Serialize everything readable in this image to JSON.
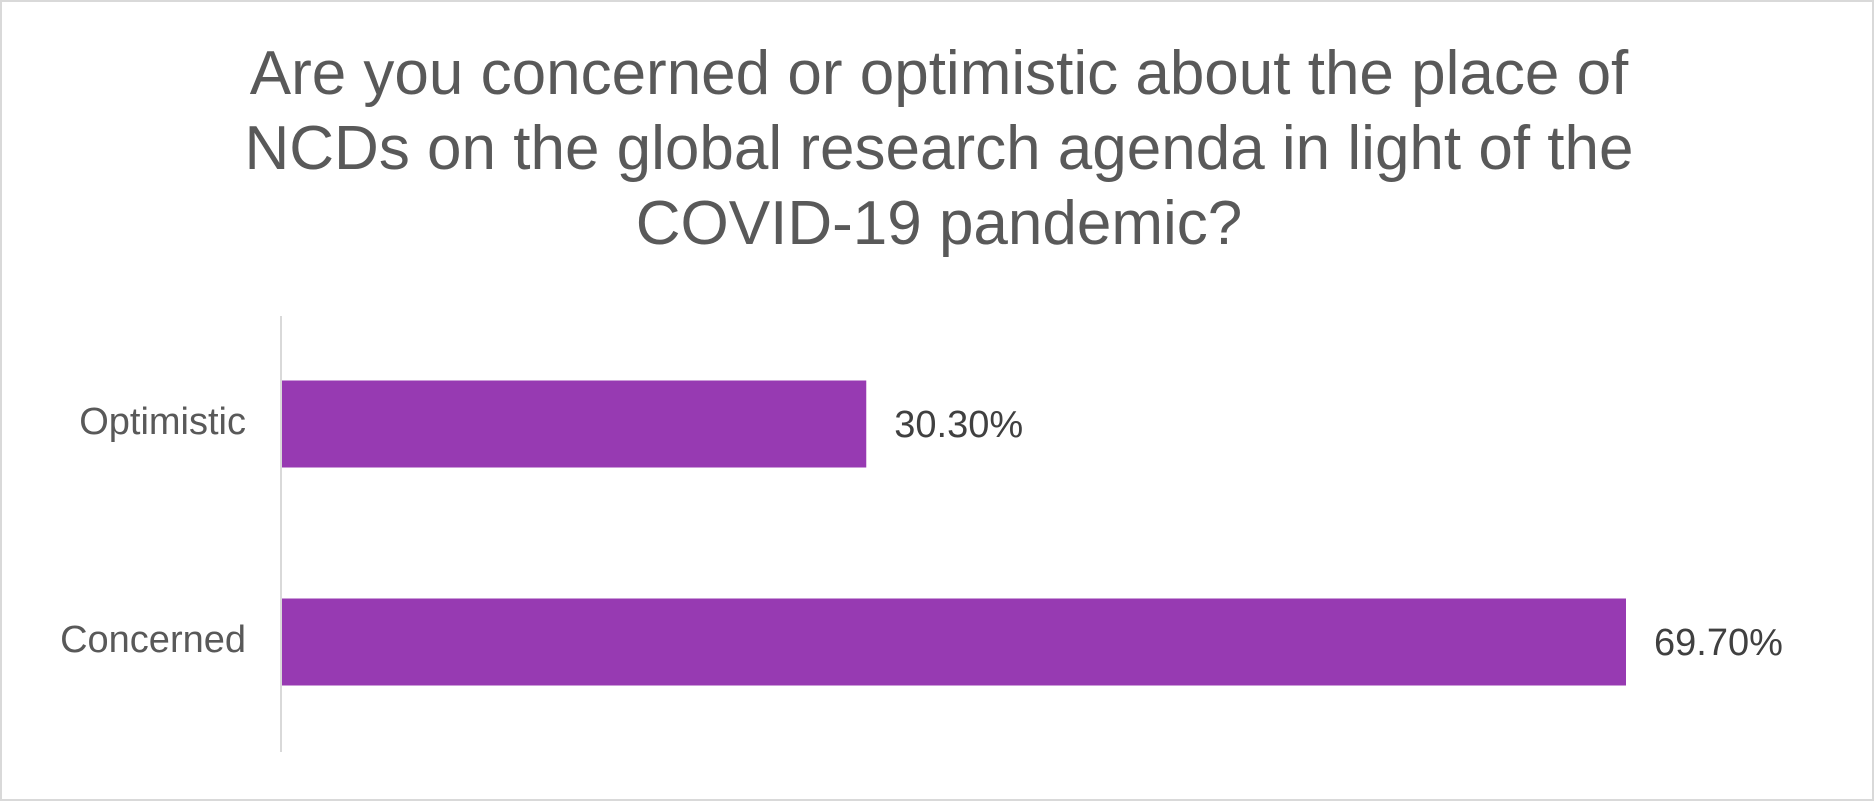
{
  "chart_data": {
    "type": "bar",
    "orientation": "horizontal",
    "title_lines": [
      "Are you concerned or optimistic about the place of",
      "NCDs on the global research agenda in light of the",
      "COVID-19 pandemic?"
    ],
    "categories": [
      "Optimistic",
      "Concerned"
    ],
    "values": [
      30.3,
      69.7
    ],
    "data_labels": [
      "30.30%",
      "69.70%"
    ],
    "xlim": [
      0,
      70
    ],
    "xlabel": "",
    "ylabel": "",
    "grid": false,
    "legend": "none",
    "bar_color": "#973AB2"
  }
}
